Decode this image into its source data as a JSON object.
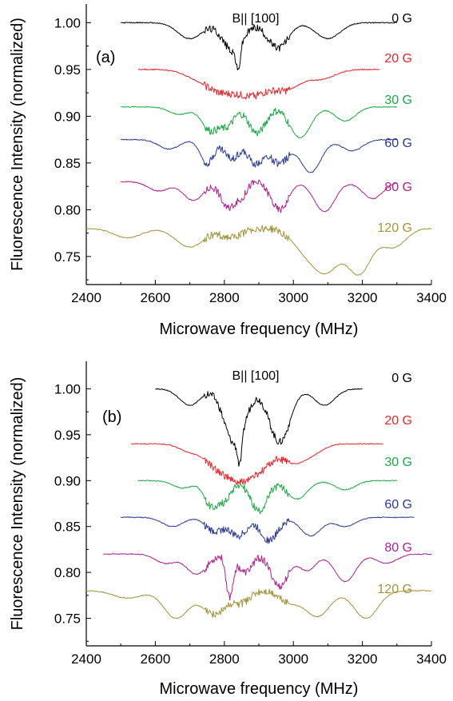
{
  "chart_data": [
    {
      "type": "line",
      "panel_label": "(a)",
      "annotation": "B|| [100]",
      "xlabel": "Microwave frequency (MHz)",
      "ylabel": "Fluorescence Intensity (normalized)",
      "xlim": [
        2400,
        3400
      ],
      "ylim": [
        0.72,
        1.02
      ],
      "xticks": [
        2400,
        2600,
        2800,
        3000,
        3200,
        3400
      ],
      "yticks": [
        0.75,
        0.8,
        0.85,
        0.9,
        0.95,
        1.0
      ],
      "ytick_labels": [
        "0.75",
        "0.80",
        "0.85",
        "0.90",
        "0.95",
        "1.00"
      ],
      "series": [
        {
          "name": "0 G",
          "color": "#000000",
          "x_range": [
            2500,
            3300
          ],
          "baseline": 1.0,
          "dips": [
            [
              2700,
              0.017,
              35
            ],
            [
              2825,
              0.03,
              30
            ],
            [
              2840,
              0.025,
              6
            ],
            [
              2955,
              0.027,
              30
            ],
            [
              3100,
              0.017,
              35
            ]
          ]
        },
        {
          "name": "20 G",
          "color": "#e8262b",
          "x_range": [
            2550,
            3250
          ],
          "baseline": 0.95,
          "dips": [
            [
              2720,
              0.008,
              40
            ],
            [
              2790,
              0.02,
              40
            ],
            [
              2880,
              0.026,
              45
            ],
            [
              2980,
              0.02,
              40
            ],
            [
              3080,
              0.01,
              40
            ]
          ]
        },
        {
          "name": "30 G",
          "color": "#1aaa45",
          "x_range": [
            2500,
            3300
          ],
          "baseline": 0.91,
          "dips": [
            [
              2670,
              0.008,
              30
            ],
            [
              2760,
              0.025,
              25
            ],
            [
              2810,
              0.018,
              20
            ],
            [
              2895,
              0.028,
              25
            ],
            [
              3020,
              0.033,
              30
            ],
            [
              3150,
              0.015,
              30
            ]
          ]
        },
        {
          "name": "60 G",
          "color": "#2b3a96",
          "x_range": [
            2500,
            3300
          ],
          "baseline": 0.875,
          "dips": [
            [
              2640,
              0.01,
              30
            ],
            [
              2750,
              0.025,
              20
            ],
            [
              2820,
              0.02,
              20
            ],
            [
              2890,
              0.025,
              25
            ],
            [
              2960,
              0.025,
              25
            ],
            [
              3050,
              0.035,
              30
            ],
            [
              3170,
              0.012,
              30
            ]
          ]
        },
        {
          "name": "80 G",
          "color": "#b0218f",
          "x_range": [
            2500,
            3300
          ],
          "baseline": 0.83,
          "dips": [
            [
              2610,
              0.01,
              30
            ],
            [
              2710,
              0.02,
              30
            ],
            [
              2810,
              0.028,
              20
            ],
            [
              2850,
              0.015,
              15
            ],
            [
              2960,
              0.03,
              25
            ],
            [
              3090,
              0.032,
              30
            ],
            [
              3230,
              0.018,
              30
            ]
          ]
        },
        {
          "name": "120 G",
          "color": "#a3953a",
          "x_range": [
            2400,
            3400
          ],
          "baseline": 0.78,
          "dips": [
            [
              2520,
              0.01,
              40
            ],
            [
              2700,
              0.02,
              40
            ],
            [
              2820,
              0.01,
              30
            ],
            [
              3040,
              0.025,
              40
            ],
            [
              3100,
              0.038,
              35
            ],
            [
              3190,
              0.048,
              35
            ],
            [
              3290,
              0.02,
              35
            ]
          ]
        }
      ]
    },
    {
      "type": "line",
      "panel_label": "(b)",
      "annotation": "B|| [100]",
      "xlabel": "Microwave frequency (MHz)",
      "ylabel": "Fluorescence Intensity (normalized)",
      "xlim": [
        2400,
        3400
      ],
      "ylim": [
        0.72,
        1.03
      ],
      "xticks": [
        2400,
        2600,
        2800,
        3000,
        3200,
        3400
      ],
      "yticks": [
        0.75,
        0.8,
        0.85,
        0.9,
        0.95,
        1.0
      ],
      "ytick_labels": [
        "0.75",
        "0.80",
        "0.85",
        "0.90",
        "0.95",
        "1.00"
      ],
      "series": [
        {
          "name": "0 G",
          "color": "#000000",
          "x_range": [
            2600,
            3200
          ],
          "baseline": 1.0,
          "dips": [
            [
              2700,
              0.018,
              30
            ],
            [
              2830,
              0.06,
              30
            ],
            [
              2845,
              0.03,
              6
            ],
            [
              2960,
              0.058,
              30
            ],
            [
              3090,
              0.018,
              30
            ]
          ]
        },
        {
          "name": "20 G",
          "color": "#e8262b",
          "x_range": [
            2530,
            3260
          ],
          "baseline": 0.94,
          "dips": [
            [
              2700,
              0.008,
              30
            ],
            [
              2780,
              0.025,
              35
            ],
            [
              2840,
              0.03,
              30
            ],
            [
              2900,
              0.028,
              35
            ],
            [
              3000,
              0.02,
              35
            ],
            [
              3060,
              0.008,
              30
            ]
          ]
        },
        {
          "name": "30 G",
          "color": "#1aaa45",
          "x_range": [
            2550,
            3300
          ],
          "baseline": 0.9,
          "dips": [
            [
              2680,
              0.008,
              30
            ],
            [
              2760,
              0.025,
              20
            ],
            [
              2800,
              0.02,
              20
            ],
            [
              2900,
              0.033,
              25
            ],
            [
              3010,
              0.02,
              30
            ],
            [
              3150,
              0.01,
              30
            ]
          ]
        },
        {
          "name": "60 G",
          "color": "#2b3a96",
          "x_range": [
            2500,
            3350
          ],
          "baseline": 0.86,
          "dips": [
            [
              2650,
              0.01,
              30
            ],
            [
              2770,
              0.015,
              25
            ],
            [
              2840,
              0.02,
              25
            ],
            [
              2930,
              0.025,
              25
            ],
            [
              3050,
              0.02,
              30
            ],
            [
              3150,
              0.01,
              30
            ]
          ]
        },
        {
          "name": "80 G",
          "color": "#b0218f",
          "x_range": [
            2450,
            3400
          ],
          "baseline": 0.82,
          "dips": [
            [
              2630,
              0.01,
              30
            ],
            [
              2720,
              0.022,
              30
            ],
            [
              2815,
              0.045,
              10
            ],
            [
              2860,
              0.02,
              20
            ],
            [
              2960,
              0.035,
              25
            ],
            [
              3040,
              0.018,
              25
            ],
            [
              3150,
              0.03,
              30
            ],
            [
              3270,
              0.01,
              30
            ]
          ]
        },
        {
          "name": "120 G",
          "color": "#a3953a",
          "x_range": [
            2400,
            3400
          ],
          "baseline": 0.78,
          "dips": [
            [
              2520,
              0.008,
              40
            ],
            [
              2660,
              0.03,
              35
            ],
            [
              2770,
              0.025,
              35
            ],
            [
              2850,
              0.012,
              25
            ],
            [
              2990,
              0.012,
              30
            ],
            [
              3070,
              0.028,
              35
            ],
            [
              3210,
              0.03,
              35
            ]
          ]
        }
      ]
    }
  ]
}
